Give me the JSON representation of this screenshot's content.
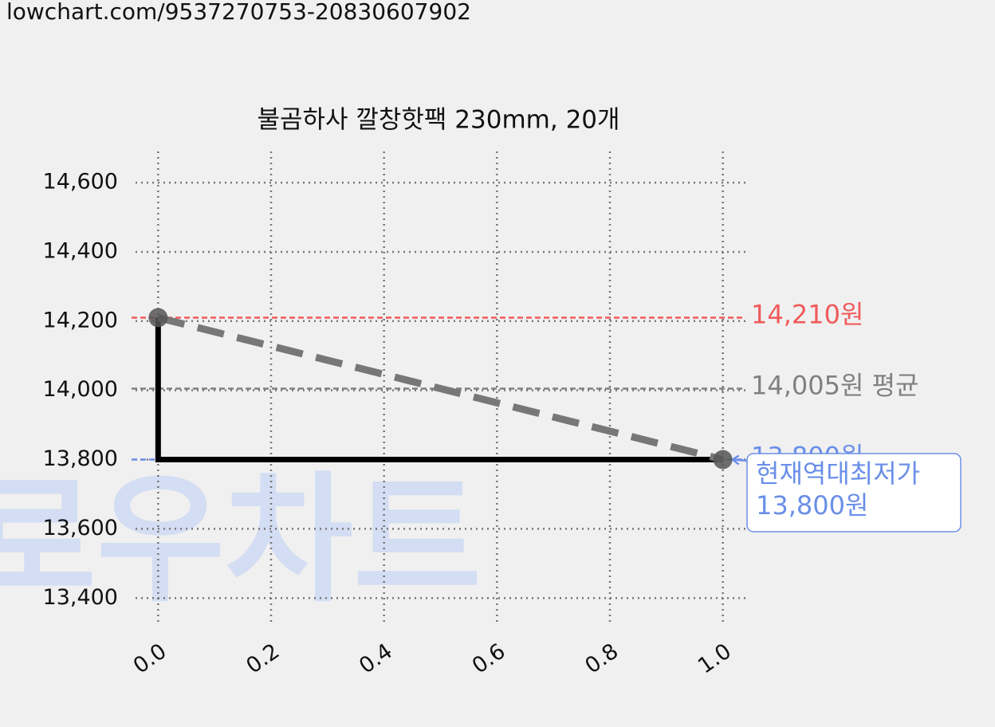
{
  "url": "lowchart.com/9537270753-20830607902",
  "chart_data": {
    "type": "line",
    "title": "불곰하사 깔창핫팩 230mm, 20개",
    "watermark": "로우차트",
    "x": [
      0,
      1
    ],
    "series": [
      {
        "color": "#000000",
        "values": [
          14210,
          13800
        ],
        "step": "pre",
        "style": "solid"
      },
      {
        "color": "#777777",
        "values": [
          14210,
          13800
        ],
        "style": "dashed",
        "markers": true
      }
    ],
    "xlim": [
      -0.04,
      1.04
    ],
    "ylim": [
      13320,
      14690
    ],
    "xticks": [
      {
        "value": 0,
        "label": "0.0"
      },
      {
        "value": 0.2,
        "label": "0.2"
      },
      {
        "value": 0.4,
        "label": "0.4"
      },
      {
        "value": 0.6,
        "label": "0.6"
      },
      {
        "value": 0.8,
        "label": "0.8"
      },
      {
        "value": 1,
        "label": "1.0"
      }
    ],
    "yticks": [
      {
        "value": 13400,
        "label": "13,400"
      },
      {
        "value": 13600,
        "label": "13,600"
      },
      {
        "value": 13800,
        "label": "13,800"
      },
      {
        "value": 14000,
        "label": "14,000"
      },
      {
        "value": 14200,
        "label": "14,200"
      },
      {
        "value": 14400,
        "label": "14,400"
      },
      {
        "value": 14600,
        "label": "14,600"
      }
    ],
    "grid": true,
    "ref_lines": [
      {
        "value": 14210,
        "label": "14,210원",
        "color": "#f05a5a"
      },
      {
        "value": 14005,
        "label": "14,005원 평균",
        "color": "#808080"
      },
      {
        "value": 13800,
        "label": "13,800원",
        "color": "#6a8fe8"
      }
    ],
    "annotation": {
      "x": 1,
      "y": 13800,
      "lines": [
        "현재역대최저가",
        "13,800원"
      ],
      "color": "#6a8fe8"
    }
  }
}
